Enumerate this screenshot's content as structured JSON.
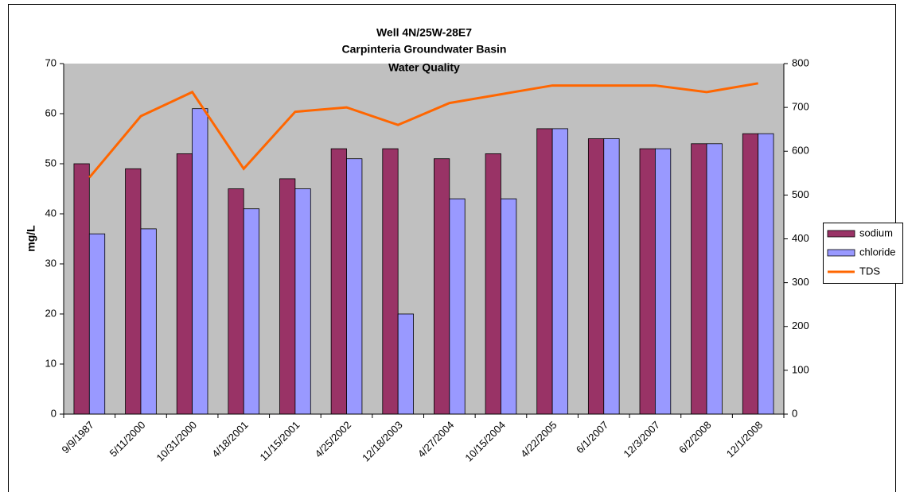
{
  "chart_data": {
    "type": "bar_line",
    "title": "Well 4N/25W-28E7",
    "subtitle": "Carpinteria Groundwater Basin",
    "subtitle2": "Water Quality",
    "ylabel": "mg/L",
    "categories": [
      "9/9/1987",
      "5/11/2000",
      "10/31/2000",
      "4/18/2001",
      "11/15/2001",
      "4/25/2002",
      "12/18/2003",
      "4/27/2004",
      "10/15/2004",
      "4/22/2005",
      "6/1/2007",
      "12/3/2007",
      "6/2/2008",
      "12/1/2008"
    ],
    "series": [
      {
        "name": "sodium",
        "type": "bar",
        "color": "#993366",
        "values": [
          50,
          49,
          52,
          45,
          47,
          53,
          53,
          51,
          52,
          57,
          55,
          53,
          54,
          56
        ]
      },
      {
        "name": "chloride",
        "type": "bar",
        "color": "#9999ff",
        "values": [
          36,
          37,
          61,
          41,
          45,
          51,
          20,
          43,
          43,
          57,
          55,
          53,
          54,
          56
        ]
      },
      {
        "name": "TDS",
        "type": "line",
        "axis": "y2",
        "color": "#ff6600",
        "values": [
          540,
          680,
          735,
          560,
          690,
          700,
          660,
          710,
          730,
          750,
          750,
          750,
          735,
          755
        ]
      }
    ],
    "ylim": [
      0,
      70
    ],
    "yticks": [
      0,
      10,
      20,
      30,
      40,
      50,
      60,
      70
    ],
    "y2lim": [
      0,
      800
    ],
    "y2ticks": [
      0,
      100,
      200,
      300,
      400,
      500,
      600,
      700,
      800
    ],
    "grid": false,
    "legend": "right",
    "plot_background": "#c0c0c0"
  }
}
